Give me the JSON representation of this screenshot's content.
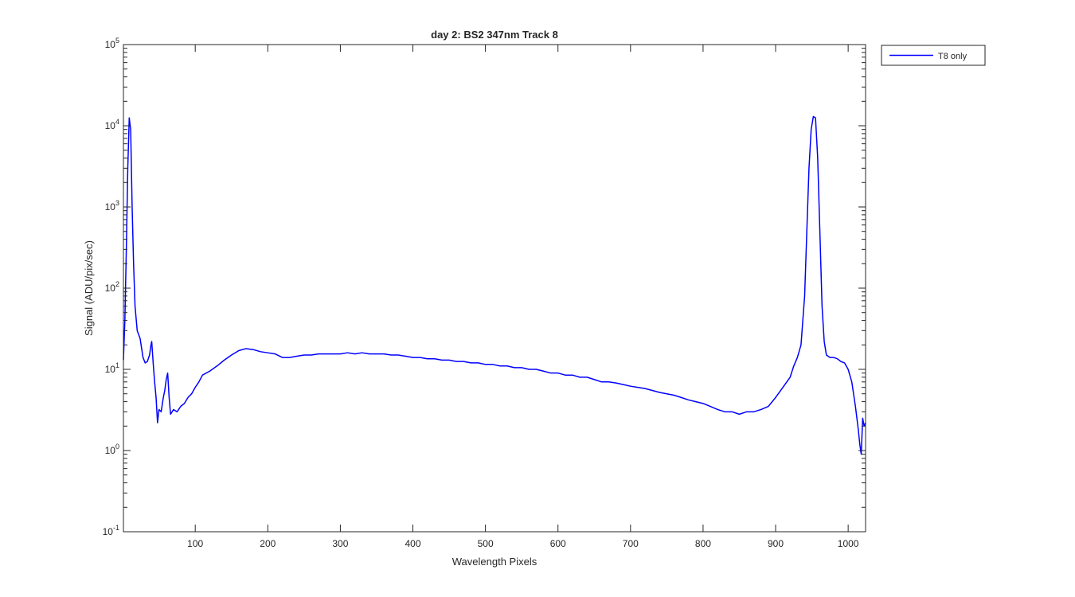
{
  "chart_data": {
    "type": "line",
    "title": "day 2: BS2  347nm  Track 8",
    "xlabel": "Wavelength Pixels",
    "ylabel": "Signal (ADU/pix/sec)",
    "xlim": [
      1,
      1024
    ],
    "ylim": [
      0.1,
      100000
    ],
    "yscale": "log",
    "grid": false,
    "legend_position": "outside-top-right",
    "x_ticks": [
      100,
      200,
      300,
      400,
      500,
      600,
      700,
      800,
      900,
      1000
    ],
    "x_tick_labels": [
      "100",
      "200",
      "300",
      "400",
      "500",
      "600",
      "700",
      "800",
      "900",
      "1000"
    ],
    "y_ticks": [
      0.1,
      1,
      10,
      100,
      1000,
      10000,
      100000
    ],
    "y_tick_base": "10",
    "y_tick_exponents": [
      "-1",
      "0",
      "1",
      "2",
      "3",
      "4",
      "5"
    ],
    "series": [
      {
        "name": "T8 only",
        "color": "#0000ff",
        "points": [
          [
            1,
            13
          ],
          [
            3,
            40
          ],
          [
            5,
            300
          ],
          [
            7,
            3000
          ],
          [
            9,
            12500
          ],
          [
            11,
            9000
          ],
          [
            13,
            1000
          ],
          [
            15,
            200
          ],
          [
            17,
            60
          ],
          [
            20,
            30
          ],
          [
            24,
            24
          ],
          [
            28,
            14
          ],
          [
            31,
            12
          ],
          [
            34,
            12.5
          ],
          [
            37,
            15
          ],
          [
            39,
            20
          ],
          [
            40,
            22
          ],
          [
            42,
            12
          ],
          [
            44,
            7
          ],
          [
            46,
            4.5
          ],
          [
            48,
            2.2
          ],
          [
            50,
            3.2
          ],
          [
            53,
            3.0
          ],
          [
            56,
            4.5
          ],
          [
            58,
            5.5
          ],
          [
            60,
            7.5
          ],
          [
            62,
            9
          ],
          [
            64,
            4.5
          ],
          [
            66,
            2.8
          ],
          [
            70,
            3.2
          ],
          [
            75,
            3.0
          ],
          [
            80,
            3.5
          ],
          [
            85,
            3.8
          ],
          [
            90,
            4.5
          ],
          [
            95,
            5.0
          ],
          [
            100,
            6.0
          ],
          [
            105,
            7.0
          ],
          [
            110,
            8.5
          ],
          [
            120,
            9.5
          ],
          [
            130,
            11
          ],
          [
            140,
            13
          ],
          [
            150,
            15
          ],
          [
            160,
            17
          ],
          [
            170,
            18
          ],
          [
            180,
            17.5
          ],
          [
            190,
            16.5
          ],
          [
            200,
            16
          ],
          [
            210,
            15.5
          ],
          [
            220,
            14
          ],
          [
            230,
            14
          ],
          [
            240,
            14.5
          ],
          [
            250,
            15
          ],
          [
            260,
            15
          ],
          [
            270,
            15.5
          ],
          [
            280,
            15.5
          ],
          [
            290,
            15.5
          ],
          [
            300,
            15.5
          ],
          [
            310,
            16
          ],
          [
            320,
            15.5
          ],
          [
            330,
            16
          ],
          [
            340,
            15.5
          ],
          [
            350,
            15.5
          ],
          [
            360,
            15.5
          ],
          [
            370,
            15
          ],
          [
            380,
            15
          ],
          [
            390,
            14.5
          ],
          [
            400,
            14
          ],
          [
            410,
            14
          ],
          [
            420,
            13.5
          ],
          [
            430,
            13.5
          ],
          [
            440,
            13
          ],
          [
            450,
            13
          ],
          [
            460,
            12.5
          ],
          [
            470,
            12.5
          ],
          [
            480,
            12
          ],
          [
            490,
            12
          ],
          [
            500,
            11.5
          ],
          [
            510,
            11.5
          ],
          [
            520,
            11
          ],
          [
            530,
            11
          ],
          [
            540,
            10.5
          ],
          [
            550,
            10.5
          ],
          [
            560,
            10
          ],
          [
            570,
            10
          ],
          [
            580,
            9.5
          ],
          [
            590,
            9
          ],
          [
            600,
            9
          ],
          [
            610,
            8.5
          ],
          [
            620,
            8.5
          ],
          [
            630,
            8
          ],
          [
            640,
            8
          ],
          [
            650,
            7.5
          ],
          [
            660,
            7
          ],
          [
            670,
            7
          ],
          [
            680,
            6.8
          ],
          [
            690,
            6.5
          ],
          [
            700,
            6.2
          ],
          [
            710,
            6
          ],
          [
            720,
            5.8
          ],
          [
            730,
            5.5
          ],
          [
            740,
            5.2
          ],
          [
            750,
            5
          ],
          [
            760,
            4.8
          ],
          [
            770,
            4.5
          ],
          [
            780,
            4.2
          ],
          [
            790,
            4
          ],
          [
            800,
            3.8
          ],
          [
            810,
            3.5
          ],
          [
            820,
            3.2
          ],
          [
            830,
            3
          ],
          [
            840,
            3
          ],
          [
            850,
            2.8
          ],
          [
            860,
            3
          ],
          [
            870,
            3
          ],
          [
            880,
            3.2
          ],
          [
            890,
            3.5
          ],
          [
            900,
            4.5
          ],
          [
            910,
            6
          ],
          [
            920,
            8
          ],
          [
            925,
            11
          ],
          [
            930,
            14
          ],
          [
            935,
            20
          ],
          [
            940,
            80
          ],
          [
            943,
            500
          ],
          [
            946,
            3000
          ],
          [
            949,
            9000
          ],
          [
            952,
            13000
          ],
          [
            955,
            12500
          ],
          [
            958,
            4000
          ],
          [
            961,
            500
          ],
          [
            964,
            60
          ],
          [
            967,
            22
          ],
          [
            970,
            15
          ],
          [
            975,
            14
          ],
          [
            980,
            14
          ],
          [
            985,
            13.5
          ],
          [
            990,
            12.5
          ],
          [
            995,
            12
          ],
          [
            1000,
            10
          ],
          [
            1005,
            7
          ],
          [
            1010,
            3.5
          ],
          [
            1014,
            1.8
          ],
          [
            1016,
            1.2
          ],
          [
            1018,
            0.9
          ],
          [
            1020,
            2.5
          ],
          [
            1022,
            2.0
          ],
          [
            1024,
            2.2
          ]
        ]
      }
    ]
  }
}
